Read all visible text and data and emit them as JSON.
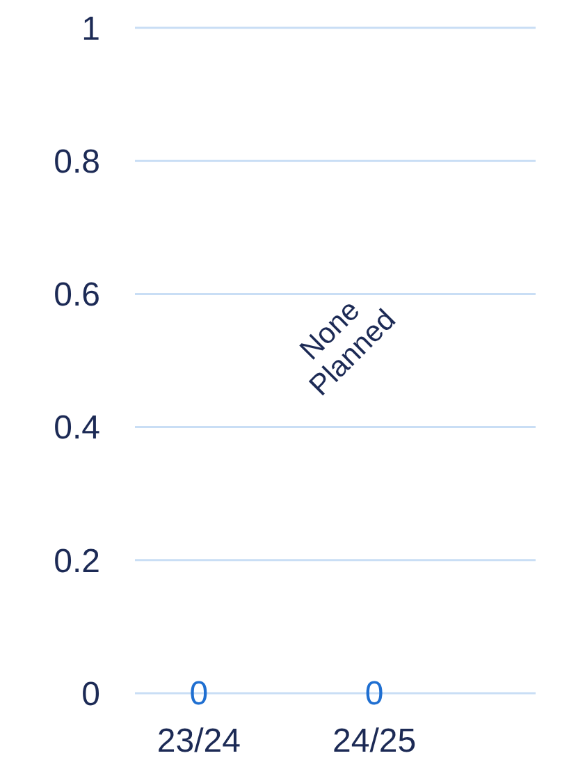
{
  "chart_data": {
    "type": "bar",
    "categories": [
      "23/24",
      "24/25"
    ],
    "values": [
      0,
      0
    ],
    "color": "#1f6fd1",
    "ylim": [
      0,
      1
    ],
    "yticks": [
      0,
      0.2,
      0.4,
      0.6,
      0.8,
      1
    ],
    "grid": "y",
    "data_labels": true,
    "annotations": [
      "None Planned"
    ]
  }
}
